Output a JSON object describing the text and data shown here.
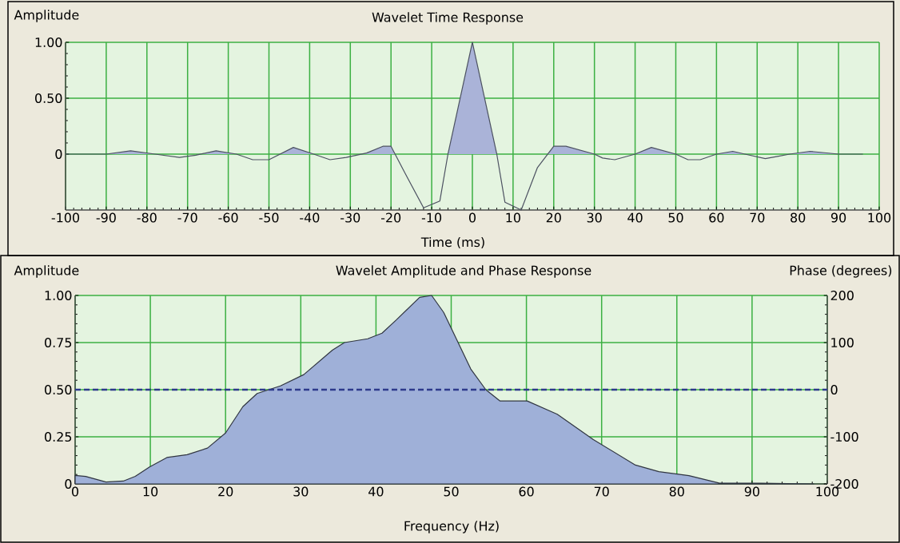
{
  "chart_data": [
    {
      "type": "area",
      "title": "Wavelet Time Response",
      "xlabel": "Time (ms)",
      "ylabel": "Amplitude",
      "xlim": [
        -100,
        100
      ],
      "ylim": [
        -0.5,
        1
      ],
      "grid": true,
      "xticks": [
        -100,
        -90,
        -80,
        -70,
        -60,
        -50,
        -40,
        -30,
        -20,
        -10,
        0,
        10,
        20,
        30,
        40,
        50,
        60,
        70,
        80,
        90,
        100
      ],
      "yticks": [
        0,
        {
          "value": 0.5,
          "label": "0.50"
        },
        {
          "value": 1,
          "label": "1.00"
        }
      ],
      "series": [
        {
          "color": "#aab3d8",
          "x": [
            -100,
            -90,
            -84,
            -78,
            -72,
            -68,
            -63,
            -58,
            -54,
            -50,
            -44,
            -39,
            -35,
            -31,
            -26,
            -22,
            -20,
            -17,
            -12,
            -8,
            -6,
            0,
            6,
            8,
            12,
            16,
            20,
            23,
            30,
            32,
            35,
            40,
            44,
            50,
            53,
            56,
            60,
            64,
            67,
            72,
            75,
            78,
            83,
            90,
            96
          ],
          "values": [
            0,
            0,
            0.03,
            0,
            -0.03,
            -0.01,
            0.03,
            0,
            -0.05,
            -0.05,
            0.06,
            0,
            -0.05,
            -0.03,
            0.01,
            0.07,
            0.07,
            -0.14,
            -0.48,
            -0.42,
            0,
            1.0,
            0,
            -0.43,
            -0.5,
            -0.12,
            0.07,
            0.07,
            0,
            -0.035,
            -0.05,
            0,
            0.06,
            0,
            -0.05,
            -0.05,
            0,
            0.025,
            0,
            -0.04,
            -0.02,
            0,
            0.025,
            0,
            0
          ]
        }
      ]
    },
    {
      "type": "area",
      "title": "Wavelet Amplitude and Phase Response",
      "xlabel": "Frequency (Hz)",
      "ylabel": "Amplitude",
      "y2label": "Phase (degrees)",
      "xlim": [
        0,
        100
      ],
      "ylim": [
        0,
        1
      ],
      "y2lim": [
        -200,
        200
      ],
      "grid": true,
      "xticks": [
        0,
        10,
        20,
        30,
        40,
        50,
        60,
        70,
        80,
        90,
        100
      ],
      "yticks": [
        0,
        {
          "value": 0.25,
          "label": "0.25"
        },
        {
          "value": 0.5,
          "label": "0.50"
        },
        {
          "value": 0.75,
          "label": "0.75"
        },
        {
          "value": 1,
          "label": "1.00"
        }
      ],
      "y2ticks": [
        -200,
        -100,
        0,
        100,
        200
      ],
      "series": [
        {
          "color": "#9fb0d8",
          "x": [
            0,
            1.4,
            4.1,
            6.4,
            8,
            9.9,
            12.2,
            14.9,
            17.6,
            20,
            22.3,
            24.2,
            27.3,
            30.4,
            34.2,
            35.8,
            38.9,
            40.8,
            42.7,
            45.8,
            47.4,
            49,
            52.6,
            54.6,
            56.5,
            60.1,
            64.1,
            68.9,
            74.5,
            77.6,
            81.6,
            85.6,
            91.2,
            98.2
          ],
          "values": [
            0.045,
            0.04,
            0.01,
            0.015,
            0.04,
            0.09,
            0.14,
            0.155,
            0.19,
            0.27,
            0.41,
            0.48,
            0.52,
            0.58,
            0.71,
            0.75,
            0.77,
            0.8,
            0.87,
            0.99,
            1.0,
            0.91,
            0.61,
            0.5,
            0.44,
            0.44,
            0.37,
            0.235,
            0.1,
            0.065,
            0.044,
            0.005,
            0.004,
            0
          ]
        },
        {
          "type": "line",
          "axis": "y2",
          "line_style": "dashed",
          "color": "#2e3a8c",
          "x": [
            0,
            100
          ],
          "values": [
            0,
            0
          ]
        }
      ]
    }
  ]
}
